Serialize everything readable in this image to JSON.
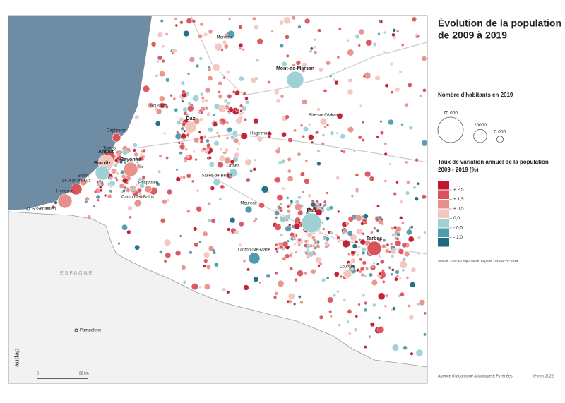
{
  "header": {
    "title_line1": "Évolution de la population",
    "title_line2": "de 2009 à 2019"
  },
  "legend_size": {
    "title": "Nombre d'habitants en 2019",
    "items": [
      {
        "value": 75000,
        "label": "75 000"
      },
      {
        "value": 20000,
        "label": "20000"
      },
      {
        "value": 5000,
        "label": "5 000"
      }
    ]
  },
  "legend_rate": {
    "title_line1": "Taux de variation annuel de la population",
    "title_line2": "2009 - 2019 (%)",
    "colors": [
      "#c0182e",
      "#d9545a",
      "#e8918c",
      "#f4c6c0",
      "#9fd0d6",
      "#4e9bab",
      "#1a6a80"
    ],
    "ticks": [
      {
        "value": 2.5,
        "label": "+ 2,5"
      },
      {
        "value": 1.5,
        "label": "+ 1,5"
      },
      {
        "value": 0.5,
        "label": "+ 0,5"
      },
      {
        "value": 0,
        "label": "0,0"
      },
      {
        "value": -0.5,
        "label": "- 0,5"
      },
      {
        "value": -1,
        "label": "- 1,0"
      }
    ]
  },
  "source": "Source : IGN-BD Topo, Admin Express | INSEE-RP 2019",
  "footer": {
    "agency": "Agence d'urbanisme Atlantique & Pyrénées",
    "date": "février 2022"
  },
  "map": {
    "places": [
      "Morcenx",
      "Mont-de-Marsan",
      "Soustons",
      "Dax",
      "Capbreton",
      "Tarnos",
      "Anglet",
      "Bayonne",
      "Biarritz",
      "Bidart",
      "St-Jean-de-Luz",
      "Hendaye",
      "St-Sébastien",
      "Orthez",
      "Salies-de-Béarn",
      "Aire-sur-l'Adour",
      "Hagetmau",
      "Hasparren",
      "Cambo-les-Bains",
      "Mourenx",
      "Pau",
      "Oloron-Ste-Marie",
      "Tarbes",
      "Lourdes",
      "Pampelune"
    ],
    "country": "ESPAGNE",
    "scale": [
      "0",
      "20 km"
    ],
    "logo": "audap"
  }
}
